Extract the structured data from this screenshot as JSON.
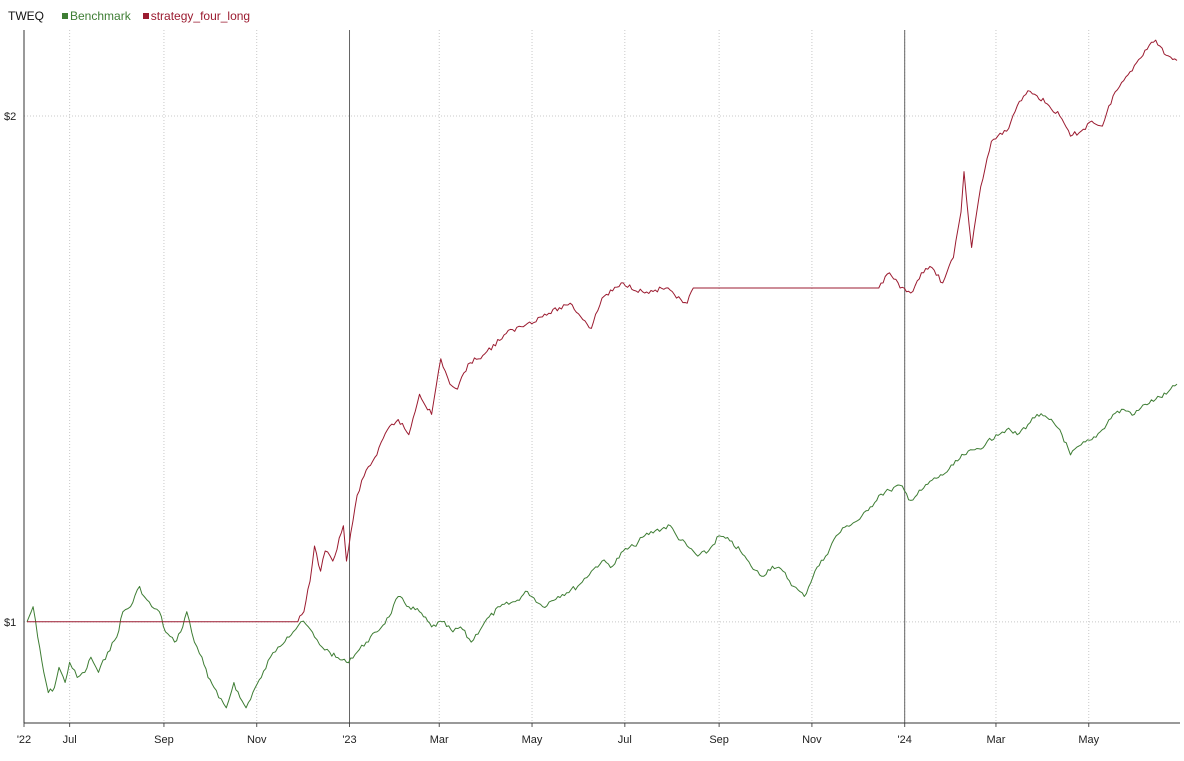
{
  "legend": {
    "ticker": "TWEQ",
    "items": [
      {
        "label": "Benchmark",
        "color": "#3e7d34"
      },
      {
        "label": "strategy_four_long",
        "color": "#9b1b30"
      }
    ]
  },
  "chart_data": {
    "type": "line",
    "title": "",
    "xlabel": "",
    "ylabel": "",
    "x_tick_labels": [
      "'22",
      "Jul",
      "Sep",
      "Nov",
      "'23",
      "Mar",
      "May",
      "Jul",
      "Sep",
      "Nov",
      "'24",
      "Mar",
      "May"
    ],
    "x_tick_dates": [
      "2022-06-01",
      "2022-07-01",
      "2022-09-01",
      "2022-11-01",
      "2023-01-01",
      "2023-03-01",
      "2023-05-01",
      "2023-07-01",
      "2023-09-01",
      "2023-11-01",
      "2024-01-01",
      "2024-03-01",
      "2024-05-01"
    ],
    "year_marker_dates": [
      "2023-01-01",
      "2024-01-01"
    ],
    "y_ticks": [
      1,
      2
    ],
    "y_tick_labels": [
      "$1",
      "$2"
    ],
    "xlim": [
      "2022-06-01",
      "2024-06-30"
    ],
    "ylim": [
      0.8,
      2.17
    ],
    "grid": true,
    "legend_position": "top-left",
    "series": [
      {
        "name": "Benchmark",
        "color": "#3e7d34",
        "points": [
          [
            "2022-06-03",
            1.0
          ],
          [
            "2022-06-07",
            1.03
          ],
          [
            "2022-06-10",
            0.97
          ],
          [
            "2022-06-14",
            0.9
          ],
          [
            "2022-06-17",
            0.86
          ],
          [
            "2022-06-21",
            0.87
          ],
          [
            "2022-06-24",
            0.91
          ],
          [
            "2022-06-28",
            0.88
          ],
          [
            "2022-07-01",
            0.92
          ],
          [
            "2022-07-06",
            0.89
          ],
          [
            "2022-07-11",
            0.9
          ],
          [
            "2022-07-15",
            0.93
          ],
          [
            "2022-07-20",
            0.9
          ],
          [
            "2022-07-26",
            0.94
          ],
          [
            "2022-08-01",
            0.97
          ],
          [
            "2022-08-05",
            1.02
          ],
          [
            "2022-08-10",
            1.03
          ],
          [
            "2022-08-16",
            1.07
          ],
          [
            "2022-08-19",
            1.05
          ],
          [
            "2022-08-24",
            1.03
          ],
          [
            "2022-08-29",
            1.02
          ],
          [
            "2022-09-02",
            0.98
          ],
          [
            "2022-09-08",
            0.96
          ],
          [
            "2022-09-12",
            0.98
          ],
          [
            "2022-09-16",
            1.02
          ],
          [
            "2022-09-21",
            0.96
          ],
          [
            "2022-09-26",
            0.93
          ],
          [
            "2022-09-30",
            0.89
          ],
          [
            "2022-10-04",
            0.87
          ],
          [
            "2022-10-07",
            0.85
          ],
          [
            "2022-10-12",
            0.83
          ],
          [
            "2022-10-17",
            0.88
          ],
          [
            "2022-10-21",
            0.85
          ],
          [
            "2022-10-25",
            0.83
          ],
          [
            "2022-10-31",
            0.87
          ],
          [
            "2022-11-04",
            0.89
          ],
          [
            "2022-11-10",
            0.93
          ],
          [
            "2022-11-15",
            0.95
          ],
          [
            "2022-11-21",
            0.97
          ],
          [
            "2022-11-25",
            0.98
          ],
          [
            "2022-11-30",
            1.0
          ],
          [
            "2022-12-05",
            0.99
          ],
          [
            "2022-12-09",
            0.97
          ],
          [
            "2022-12-14",
            0.95
          ],
          [
            "2022-12-19",
            0.94
          ],
          [
            "2022-12-23",
            0.93
          ],
          [
            "2022-12-30",
            0.92
          ],
          [
            "2023-01-06",
            0.94
          ],
          [
            "2023-01-12",
            0.96
          ],
          [
            "2023-01-19",
            0.98
          ],
          [
            "2023-01-27",
            1.01
          ],
          [
            "2023-02-02",
            1.05
          ],
          [
            "2023-02-09",
            1.03
          ],
          [
            "2023-02-16",
            1.02
          ],
          [
            "2023-02-24",
            0.99
          ],
          [
            "2023-03-03",
            1.0
          ],
          [
            "2023-03-10",
            0.98
          ],
          [
            "2023-03-15",
            0.99
          ],
          [
            "2023-03-22",
            0.96
          ],
          [
            "2023-03-31",
            1.0
          ],
          [
            "2023-04-10",
            1.03
          ],
          [
            "2023-04-20",
            1.04
          ],
          [
            "2023-04-28",
            1.06
          ],
          [
            "2023-05-08",
            1.03
          ],
          [
            "2023-05-18",
            1.05
          ],
          [
            "2023-05-31",
            1.07
          ],
          [
            "2023-06-09",
            1.1
          ],
          [
            "2023-06-16",
            1.12
          ],
          [
            "2023-06-23",
            1.11
          ],
          [
            "2023-06-30",
            1.14
          ],
          [
            "2023-07-07",
            1.15
          ],
          [
            "2023-07-14",
            1.17
          ],
          [
            "2023-07-21",
            1.18
          ],
          [
            "2023-07-31",
            1.19
          ],
          [
            "2023-08-04",
            1.17
          ],
          [
            "2023-08-11",
            1.15
          ],
          [
            "2023-08-18",
            1.13
          ],
          [
            "2023-08-25",
            1.14
          ],
          [
            "2023-09-01",
            1.17
          ],
          [
            "2023-09-08",
            1.16
          ],
          [
            "2023-09-15",
            1.14
          ],
          [
            "2023-09-22",
            1.11
          ],
          [
            "2023-09-29",
            1.09
          ],
          [
            "2023-10-06",
            1.11
          ],
          [
            "2023-10-13",
            1.1
          ],
          [
            "2023-10-20",
            1.07
          ],
          [
            "2023-10-27",
            1.05
          ],
          [
            "2023-11-03",
            1.1
          ],
          [
            "2023-11-10",
            1.13
          ],
          [
            "2023-11-17",
            1.17
          ],
          [
            "2023-11-24",
            1.19
          ],
          [
            "2023-12-01",
            1.2
          ],
          [
            "2023-12-08",
            1.22
          ],
          [
            "2023-12-15",
            1.25
          ],
          [
            "2023-12-22",
            1.26
          ],
          [
            "2023-12-29",
            1.27
          ],
          [
            "2024-01-05",
            1.24
          ],
          [
            "2024-01-12",
            1.26
          ],
          [
            "2024-01-19",
            1.28
          ],
          [
            "2024-01-26",
            1.29
          ],
          [
            "2024-02-02",
            1.31
          ],
          [
            "2024-02-09",
            1.33
          ],
          [
            "2024-02-16",
            1.34
          ],
          [
            "2024-02-23",
            1.35
          ],
          [
            "2024-03-01",
            1.37
          ],
          [
            "2024-03-08",
            1.38
          ],
          [
            "2024-03-15",
            1.37
          ],
          [
            "2024-03-22",
            1.39
          ],
          [
            "2024-03-28",
            1.41
          ],
          [
            "2024-04-05",
            1.4
          ],
          [
            "2024-04-12",
            1.38
          ],
          [
            "2024-04-19",
            1.33
          ],
          [
            "2024-04-26",
            1.35
          ],
          [
            "2024-05-03",
            1.36
          ],
          [
            "2024-05-10",
            1.38
          ],
          [
            "2024-05-17",
            1.41
          ],
          [
            "2024-05-24",
            1.42
          ],
          [
            "2024-05-31",
            1.41
          ],
          [
            "2024-06-07",
            1.43
          ],
          [
            "2024-06-14",
            1.44
          ],
          [
            "2024-06-21",
            1.45
          ],
          [
            "2024-06-28",
            1.47
          ]
        ]
      },
      {
        "name": "strategy_four_long",
        "color": "#9b1b30",
        "points": [
          [
            "2022-06-03",
            1.0
          ],
          [
            "2022-11-28",
            1.0
          ],
          [
            "2022-12-02",
            1.02
          ],
          [
            "2022-12-06",
            1.08
          ],
          [
            "2022-12-09",
            1.15
          ],
          [
            "2022-12-13",
            1.1
          ],
          [
            "2022-12-16",
            1.14
          ],
          [
            "2022-12-21",
            1.12
          ],
          [
            "2022-12-28",
            1.19
          ],
          [
            "2022-12-30",
            1.12
          ],
          [
            "2023-01-06",
            1.25
          ],
          [
            "2023-01-12",
            1.3
          ],
          [
            "2023-01-19",
            1.33
          ],
          [
            "2023-01-26",
            1.38
          ],
          [
            "2023-02-02",
            1.4
          ],
          [
            "2023-02-09",
            1.37
          ],
          [
            "2023-02-16",
            1.45
          ],
          [
            "2023-02-24",
            1.41
          ],
          [
            "2023-03-02",
            1.52
          ],
          [
            "2023-03-08",
            1.47
          ],
          [
            "2023-03-13",
            1.46
          ],
          [
            "2023-03-20",
            1.51
          ],
          [
            "2023-03-31",
            1.53
          ],
          [
            "2023-04-14",
            1.57
          ],
          [
            "2023-04-28",
            1.59
          ],
          [
            "2023-05-12",
            1.61
          ],
          [
            "2023-05-26",
            1.63
          ],
          [
            "2023-06-09",
            1.58
          ],
          [
            "2023-06-16",
            1.64
          ],
          [
            "2023-06-30",
            1.67
          ],
          [
            "2023-07-14",
            1.65
          ],
          [
            "2023-07-28",
            1.66
          ],
          [
            "2023-08-04",
            1.64
          ],
          [
            "2023-08-11",
            1.63
          ],
          [
            "2023-08-15",
            1.66
          ],
          [
            "2023-12-15",
            1.66
          ],
          [
            "2023-12-22",
            1.69
          ],
          [
            "2023-12-29",
            1.66
          ],
          [
            "2024-01-05",
            1.65
          ],
          [
            "2024-01-12",
            1.69
          ],
          [
            "2024-01-19",
            1.7
          ],
          [
            "2024-01-26",
            1.67
          ],
          [
            "2024-02-02",
            1.72
          ],
          [
            "2024-02-07",
            1.81
          ],
          [
            "2024-02-09",
            1.89
          ],
          [
            "2024-02-14",
            1.74
          ],
          [
            "2024-02-20",
            1.86
          ],
          [
            "2024-02-27",
            1.95
          ],
          [
            "2024-03-08",
            1.97
          ],
          [
            "2024-03-15",
            2.02
          ],
          [
            "2024-03-22",
            2.05
          ],
          [
            "2024-03-28",
            2.04
          ],
          [
            "2024-04-05",
            2.02
          ],
          [
            "2024-04-12",
            2.0
          ],
          [
            "2024-04-19",
            1.96
          ],
          [
            "2024-04-26",
            1.97
          ],
          [
            "2024-05-03",
            1.99
          ],
          [
            "2024-05-10",
            1.98
          ],
          [
            "2024-05-17",
            2.04
          ],
          [
            "2024-05-24",
            2.07
          ],
          [
            "2024-05-31",
            2.1
          ],
          [
            "2024-06-07",
            2.13
          ],
          [
            "2024-06-14",
            2.15
          ],
          [
            "2024-06-21",
            2.12
          ],
          [
            "2024-06-28",
            2.11
          ]
        ]
      }
    ]
  }
}
